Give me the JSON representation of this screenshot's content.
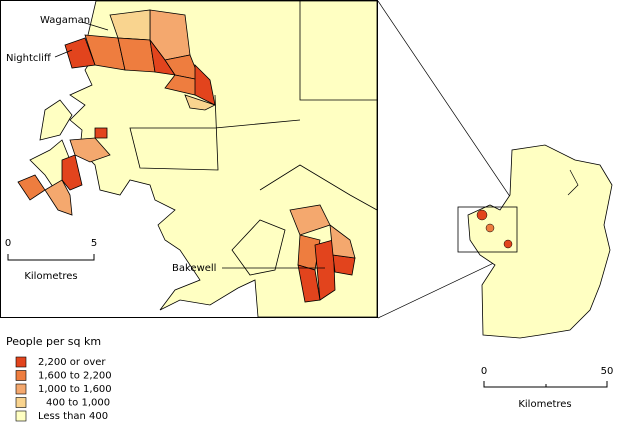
{
  "map": {
    "places": [
      "Wagaman",
      "Nightcliff",
      "Bakewell"
    ],
    "inset_scale": {
      "ticks": [
        0,
        5
      ],
      "unit": "Kilometres"
    },
    "main_scale": {
      "ticks": [
        0,
        50
      ],
      "unit": "Kilometres"
    },
    "legend": {
      "title": "People per sq km",
      "items": [
        {
          "label": "2,200 or over",
          "color": "#e2441d"
        },
        {
          "label": "1,600 to 2,200",
          "color": "#ee7d3f"
        },
        {
          "label": "1,000 to 1,600",
          "color": "#f4a86e"
        },
        {
          "label": "400 to 1,000",
          "color": "#f9d48f"
        },
        {
          "label": "Less than 400",
          "color": "#ffffc2"
        }
      ]
    }
  }
}
